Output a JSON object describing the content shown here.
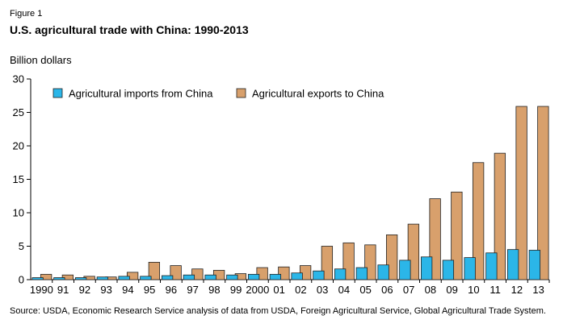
{
  "figure_label": "Figure 1",
  "chart_data": {
    "type": "bar",
    "title": "U.S. agricultural trade with China: 1990-2013",
    "ylabel": "Billion dollars",
    "xlabel": "",
    "ylim": [
      0,
      30
    ],
    "yticks": [
      0,
      5,
      10,
      15,
      20,
      25,
      30
    ],
    "grid": false,
    "legend_position": "top-left",
    "categories": [
      "1990",
      "91",
      "92",
      "93",
      "94",
      "95",
      "96",
      "97",
      "98",
      "99",
      "2000",
      "01",
      "02",
      "03",
      "04",
      "05",
      "06",
      "07",
      "08",
      "09",
      "10",
      "11",
      "12",
      "13"
    ],
    "series": [
      {
        "name": "Agricultural imports from China",
        "color": "#2bb6e8",
        "values": [
          0.3,
          0.3,
          0.3,
          0.4,
          0.5,
          0.5,
          0.6,
          0.7,
          0.7,
          0.7,
          0.8,
          0.8,
          1.0,
          1.3,
          1.6,
          1.8,
          2.2,
          2.9,
          3.4,
          2.9,
          3.3,
          4.0,
          4.5,
          4.4
        ]
      },
      {
        "name": "Agricultural exports to China",
        "color": "#d8a06c",
        "values": [
          0.8,
          0.7,
          0.5,
          0.4,
          1.1,
          2.6,
          2.1,
          1.6,
          1.4,
          0.9,
          1.8,
          1.9,
          2.1,
          5.0,
          5.5,
          5.2,
          6.7,
          8.3,
          12.1,
          13.1,
          17.5,
          18.9,
          25.9,
          25.9
        ]
      }
    ]
  },
  "source": "Source: USDA, Economic Research Service analysis of data from USDA, Foreign Agricultural Service, Global Agricultural Trade System."
}
